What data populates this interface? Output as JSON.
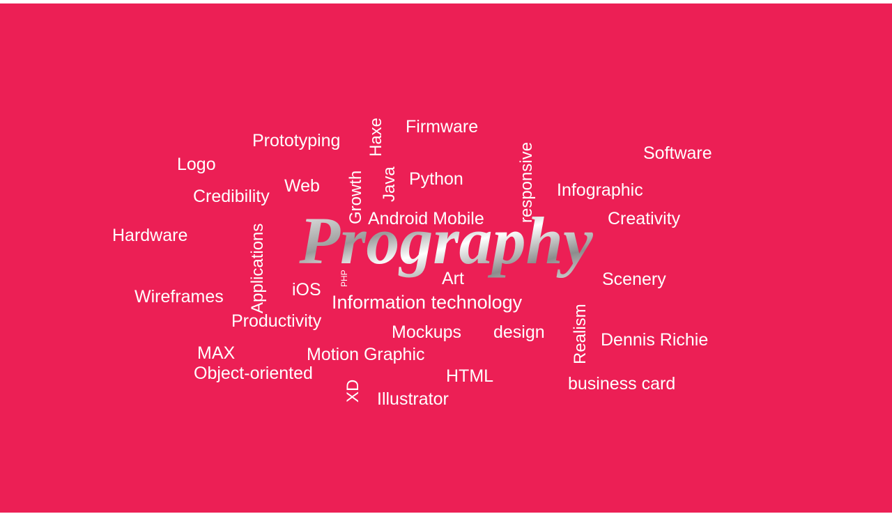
{
  "logo": "Prography",
  "words": [
    "Prototyping",
    "Haxe",
    "Firmware",
    "responsive",
    "Software",
    "Logo",
    "Growth",
    "Java",
    "Python",
    "Infographic",
    "Credibility",
    "Web",
    "Android Mobile",
    "Creativity",
    "Hardware",
    "Applications",
    "PHP",
    "Art",
    "Scenery",
    "iOS",
    "Wireframes",
    "Information technology",
    "Realism",
    "Productivity",
    "Mockups",
    "design",
    "Dennis Richie",
    "MAX",
    "Motion Graphic",
    "Object-oriented",
    "XD",
    "HTML",
    "business card",
    "Illustrator"
  ]
}
